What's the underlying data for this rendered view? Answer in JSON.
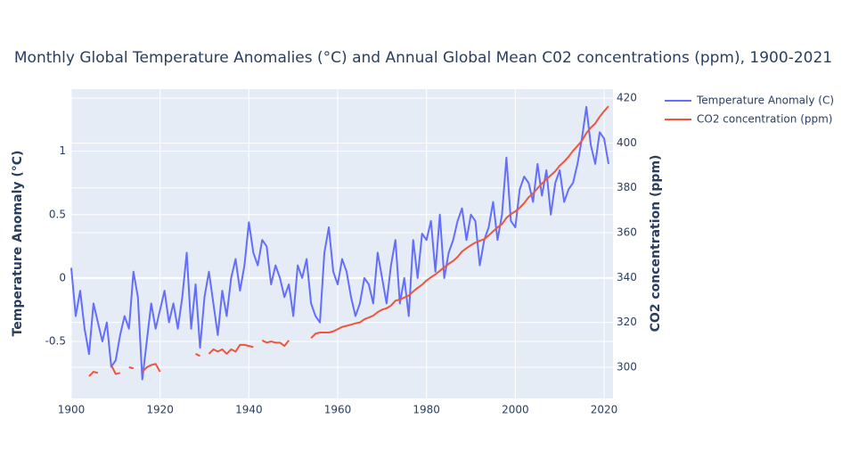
{
  "chart_data": {
    "type": "line",
    "title": "Monthly Global Temperature Anomalies (°C) and Annual Global Mean C02 concentrations (ppm), 1900-2021",
    "y_label": "Temperature Anomaly (°C)",
    "y2_label": "CO2 concentration (ppm)",
    "x": [
      1900,
      1901,
      1902,
      1903,
      1904,
      1905,
      1906,
      1907,
      1908,
      1909,
      1910,
      1911,
      1912,
      1913,
      1914,
      1915,
      1916,
      1917,
      1918,
      1919,
      1920,
      1921,
      1922,
      1923,
      1924,
      1925,
      1926,
      1927,
      1928,
      1929,
      1930,
      1931,
      1932,
      1933,
      1934,
      1935,
      1936,
      1937,
      1938,
      1939,
      1940,
      1941,
      1942,
      1943,
      1944,
      1945,
      1946,
      1947,
      1948,
      1949,
      1950,
      1951,
      1952,
      1953,
      1954,
      1955,
      1956,
      1957,
      1958,
      1959,
      1960,
      1961,
      1962,
      1963,
      1964,
      1965,
      1966,
      1967,
      1968,
      1969,
      1970,
      1971,
      1972,
      1973,
      1974,
      1975,
      1976,
      1977,
      1978,
      1979,
      1980,
      1981,
      1982,
      1983,
      1984,
      1985,
      1986,
      1987,
      1988,
      1989,
      1990,
      1991,
      1992,
      1993,
      1994,
      1995,
      1996,
      1997,
      1998,
      1999,
      2000,
      2001,
      2002,
      2003,
      2004,
      2005,
      2006,
      2007,
      2008,
      2009,
      2010,
      2011,
      2012,
      2013,
      2014,
      2015,
      2016,
      2017,
      2018,
      2019,
      2020,
      2021
    ],
    "series": [
      {
        "name": "Temperature Anomaly (C)",
        "color": "#636efa",
        "axis": "y",
        "values": [
          0.08,
          -0.3,
          -0.1,
          -0.4,
          -0.6,
          -0.2,
          -0.35,
          -0.5,
          -0.35,
          -0.7,
          -0.65,
          -0.45,
          -0.3,
          -0.4,
          0.05,
          -0.15,
          -0.8,
          -0.5,
          -0.2,
          -0.4,
          -0.25,
          -0.1,
          -0.35,
          -0.2,
          -0.4,
          -0.15,
          0.2,
          -0.4,
          -0.05,
          -0.55,
          -0.15,
          0.05,
          -0.2,
          -0.45,
          -0.1,
          -0.3,
          0.0,
          0.15,
          -0.1,
          0.1,
          0.44,
          0.2,
          0.1,
          0.3,
          0.25,
          -0.05,
          0.1,
          0.0,
          -0.15,
          -0.05,
          -0.3,
          0.1,
          0.0,
          0.15,
          -0.2,
          -0.3,
          -0.35,
          0.2,
          0.4,
          0.05,
          -0.05,
          0.15,
          0.05,
          -0.15,
          -0.3,
          -0.2,
          0.0,
          -0.05,
          -0.2,
          0.2,
          0.0,
          -0.2,
          0.1,
          0.3,
          -0.2,
          0.0,
          -0.3,
          0.3,
          0.0,
          0.35,
          0.3,
          0.45,
          0.05,
          0.5,
          0.0,
          0.2,
          0.3,
          0.45,
          0.55,
          0.3,
          0.5,
          0.45,
          0.1,
          0.3,
          0.4,
          0.6,
          0.3,
          0.5,
          0.95,
          0.45,
          0.4,
          0.7,
          0.8,
          0.75,
          0.6,
          0.9,
          0.65,
          0.85,
          0.5,
          0.75,
          0.85,
          0.6,
          0.7,
          0.75,
          0.9,
          1.1,
          1.35,
          1.05,
          0.9,
          1.15,
          1.1,
          0.9
        ]
      },
      {
        "name": "CO2 concentration (ppm)",
        "color": "#ef553b",
        "axis": "y2",
        "values": [
          null,
          null,
          null,
          null,
          296,
          298,
          297.5,
          null,
          null,
          301,
          297,
          297.5,
          null,
          300,
          299.5,
          null,
          298,
          300,
          301,
          301.5,
          298,
          null,
          null,
          null,
          null,
          null,
          null,
          null,
          306,
          305,
          null,
          306,
          308,
          307,
          308,
          306,
          308,
          307,
          310,
          310,
          309.5,
          309,
          null,
          312,
          311,
          311.5,
          311,
          311,
          309.5,
          312,
          null,
          null,
          null,
          null,
          313,
          315,
          315.5,
          315.5,
          315.5,
          316,
          317,
          318,
          318.5,
          319,
          319.6,
          320,
          321.4,
          322.2,
          323,
          324.6,
          325.7,
          326.3,
          327.5,
          329.7,
          330.2,
          331.1,
          332,
          333.8,
          335.4,
          336.8,
          338.7,
          340.1,
          341.4,
          343,
          344.6,
          346.1,
          347.4,
          349.2,
          351.6,
          353.1,
          354.4,
          355.6,
          356.4,
          357.1,
          358.8,
          360.6,
          362.4,
          363.8,
          366.6,
          368.3,
          369.5,
          371.1,
          373.2,
          375.8,
          377.5,
          379.8,
          381.9,
          383.8,
          385.6,
          387.4,
          389.9,
          391.7,
          393.9,
          396.5,
          398.7,
          401,
          404.4,
          406.8,
          408.7,
          411.7,
          414.2,
          416.4
        ]
      }
    ],
    "xlim": [
      1900,
      2022
    ],
    "xticks": [
      1900,
      1920,
      1940,
      1960,
      1980,
      2000,
      2020
    ],
    "ylim": [
      -0.95,
      1.49
    ],
    "yticks": [
      -0.5,
      0,
      0.5,
      1
    ],
    "y2lim": [
      286.1,
      424
    ],
    "y2ticks": [
      300,
      320,
      340,
      360,
      380,
      400,
      420
    ],
    "grid": true,
    "legend": "top-right"
  }
}
